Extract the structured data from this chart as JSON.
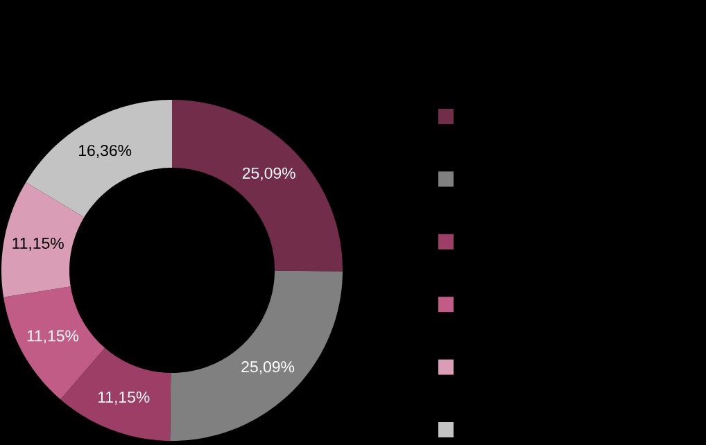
{
  "chart_data": {
    "type": "donut",
    "categories": [
      null,
      null,
      null,
      null,
      null,
      null
    ],
    "values": [
      25.09,
      25.09,
      11.15,
      11.15,
      11.15,
      16.36
    ],
    "value_labels": [
      "25,09%",
      "25,09%",
      "11,15%",
      "11,15%",
      "11,15%",
      "16,36%"
    ],
    "colors": [
      "#722d4a",
      "#808080",
      "#9c3e65",
      "#c05c85",
      "#d99db5",
      "#c3c3c3"
    ]
  }
}
